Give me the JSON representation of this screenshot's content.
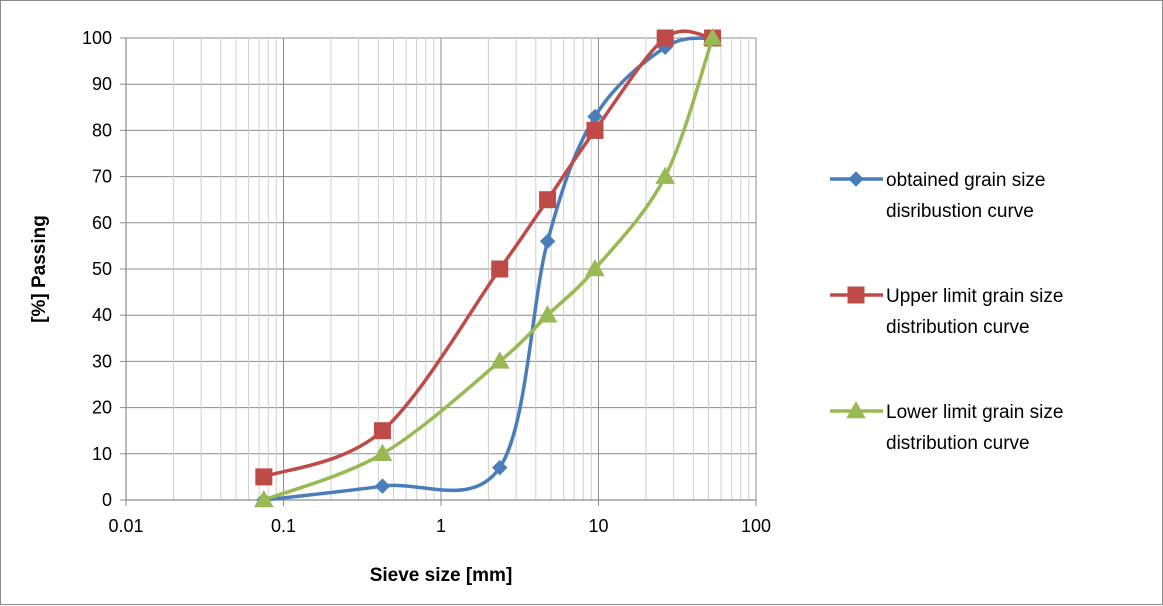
{
  "chart_data": {
    "type": "line",
    "x_scale": "log",
    "xlabel": "Sieve size [mm]",
    "ylabel": "[%] Passing",
    "xlim": [
      0.01,
      100
    ],
    "ylim": [
      0,
      100
    ],
    "x_tick_labels": [
      "0.01",
      "0.1",
      "1",
      "10",
      "100"
    ],
    "y_tick_labels": [
      "0",
      "10",
      "20",
      "30",
      "40",
      "50",
      "60",
      "70",
      "80",
      "90",
      "100"
    ],
    "grid": true,
    "legend_position": "right",
    "series": [
      {
        "name": [
          "obtained grain size",
          "disribustion curve"
        ],
        "color": "#4a7ebb",
        "marker": "diamond",
        "x": [
          0.075,
          0.425,
          2.36,
          4.75,
          9.5,
          26.5,
          53
        ],
        "y": [
          0,
          3,
          7,
          56,
          83,
          98,
          100
        ]
      },
      {
        "name": [
          "Upper limit grain size",
          "distribution curve"
        ],
        "color": "#be4b48",
        "marker": "square",
        "x": [
          0.075,
          0.425,
          2.36,
          4.75,
          9.5,
          26.5,
          53
        ],
        "y": [
          5,
          15,
          50,
          65,
          80,
          100,
          100
        ]
      },
      {
        "name": [
          "Lower limit grain size",
          "distribution curve"
        ],
        "color": "#98b954",
        "marker": "triangle",
        "x": [
          0.075,
          0.425,
          2.36,
          4.75,
          9.5,
          26.5,
          53
        ],
        "y": [
          0,
          10,
          30,
          40,
          50,
          70,
          100
        ]
      }
    ]
  }
}
